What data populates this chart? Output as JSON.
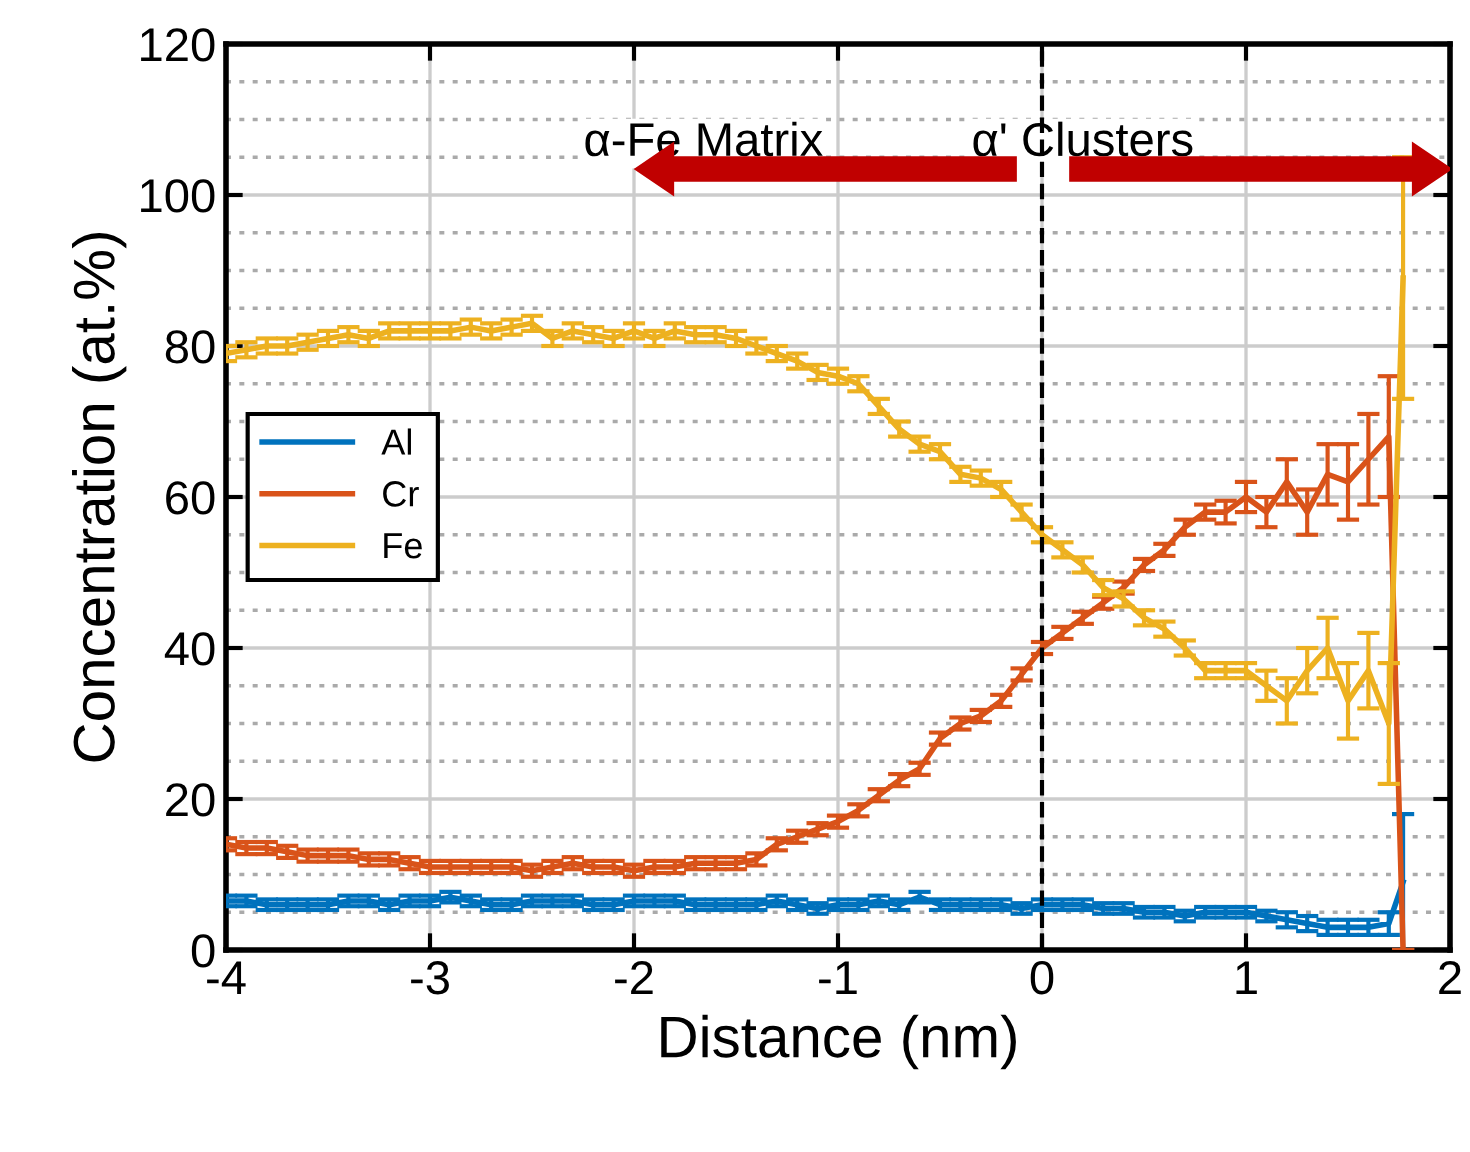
{
  "chart_data": {
    "type": "line",
    "xlabel": "Distance (nm)",
    "ylabel": "Concentration (at.%)",
    "x": [
      -4.0,
      -3.9,
      -3.8,
      -3.7,
      -3.6,
      -3.5,
      -3.4,
      -3.3,
      -3.2,
      -3.1,
      -3.0,
      -2.9,
      -2.8,
      -2.7,
      -2.6,
      -2.5,
      -2.4,
      -2.3,
      -2.2,
      -2.1,
      -2.0,
      -1.9,
      -1.8,
      -1.7,
      -1.6,
      -1.5,
      -1.4,
      -1.3,
      -1.2,
      -1.1,
      -1.0,
      -0.9,
      -0.8,
      -0.7,
      -0.6,
      -0.5,
      -0.4,
      -0.3,
      -0.2,
      -0.1,
      0.0,
      0.1,
      0.2,
      0.3,
      0.4,
      0.5,
      0.6,
      0.7,
      0.8,
      0.9,
      1.0,
      1.1,
      1.2,
      1.3,
      1.4,
      1.5,
      1.6,
      1.7,
      1.77
    ],
    "series": [
      {
        "name": "Al",
        "color": "#0072bd",
        "values": [
          6.5,
          6.5,
          6,
          6,
          6,
          6,
          6.5,
          6.5,
          6,
          6.5,
          6.5,
          7,
          6.5,
          6,
          6,
          6.5,
          6.5,
          6.5,
          6,
          6,
          6.5,
          6.5,
          6.5,
          6,
          6,
          6,
          6,
          6.5,
          6,
          5.5,
          6,
          6,
          6.5,
          6,
          7,
          6,
          6,
          6,
          6,
          5.5,
          6,
          6,
          6,
          5.5,
          5.5,
          5,
          5,
          4.5,
          5,
          5,
          5,
          4.5,
          4,
          3.5,
          3,
          3,
          3,
          3.5,
          9
        ],
        "errors": [
          0.7,
          0.7,
          0.7,
          0.7,
          0.7,
          0.7,
          0.7,
          0.7,
          0.7,
          0.7,
          0.7,
          0.7,
          0.7,
          0.7,
          0.7,
          0.7,
          0.7,
          0.7,
          0.7,
          0.7,
          0.7,
          0.7,
          0.7,
          0.7,
          0.7,
          0.7,
          0.7,
          0.7,
          0.7,
          0.7,
          0.7,
          0.7,
          0.7,
          0.7,
          0.7,
          0.7,
          0.7,
          0.7,
          0.7,
          0.7,
          0.7,
          0.7,
          0.7,
          0.7,
          0.7,
          0.7,
          0.7,
          0.7,
          0.7,
          0.7,
          0.7,
          0.7,
          1,
          1,
          1,
          1,
          1,
          1.5,
          9
        ]
      },
      {
        "name": "Cr",
        "color": "#d95319",
        "values": [
          14,
          13.5,
          13.5,
          13,
          12.5,
          12.5,
          12.5,
          12,
          12,
          11.5,
          11,
          11,
          11,
          11,
          11,
          10.5,
          11,
          11.5,
          11,
          11,
          10.5,
          11,
          11,
          11.5,
          11.5,
          11.5,
          12,
          14,
          15,
          16,
          17,
          18.5,
          20.5,
          22.5,
          24,
          28,
          30,
          31,
          33,
          36.5,
          40,
          42,
          44,
          46,
          48,
          51,
          53,
          56,
          58,
          58,
          60,
          58,
          62,
          58,
          63,
          62,
          65,
          68,
          0
        ],
        "errors": [
          0.8,
          0.8,
          0.8,
          0.8,
          0.8,
          0.8,
          0.8,
          0.8,
          0.8,
          0.8,
          0.8,
          0.8,
          0.8,
          0.8,
          0.8,
          0.8,
          0.8,
          0.8,
          0.8,
          0.8,
          0.8,
          0.8,
          0.8,
          0.8,
          0.8,
          0.8,
          0.8,
          0.8,
          0.8,
          0.8,
          0.8,
          0.8,
          0.8,
          0.8,
          0.8,
          0.8,
          0.8,
          0.8,
          0.8,
          0.8,
          0.8,
          0.8,
          0.8,
          0.8,
          0.8,
          0.8,
          0.8,
          1,
          1,
          1.5,
          2,
          2,
          3,
          3,
          4,
          5,
          6,
          8,
          0
        ]
      },
      {
        "name": "Fe",
        "color": "#edb120",
        "values": [
          79,
          79.5,
          80,
          80,
          80.5,
          81,
          81.5,
          81,
          82,
          82,
          82,
          82,
          82.5,
          82,
          82.5,
          83,
          81,
          82,
          81.5,
          81,
          82,
          81,
          82,
          81.5,
          81.5,
          81,
          80,
          79,
          78,
          76.5,
          76,
          75,
          72,
          69,
          67,
          66,
          63,
          62.5,
          61,
          58,
          55,
          53,
          51,
          48,
          46.5,
          44,
          42.5,
          40,
          37,
          37,
          37,
          35,
          33,
          37,
          40,
          33,
          37,
          30,
          89
        ],
        "errors": [
          1,
          1,
          1,
          1,
          1,
          1,
          1,
          1,
          1,
          1,
          1,
          1,
          1,
          1,
          1,
          1,
          1,
          1,
          1,
          1,
          1,
          1,
          1,
          1,
          1,
          1,
          1,
          1,
          1,
          1,
          1,
          1,
          1,
          1,
          1,
          1,
          1,
          1,
          1,
          1,
          1,
          1,
          1,
          1,
          1,
          1,
          1,
          1,
          1,
          1,
          1,
          2,
          3,
          3,
          4,
          5,
          5,
          8,
          16
        ]
      }
    ],
    "xlim": [
      -4,
      2
    ],
    "xticks": [
      -4,
      -3,
      -2,
      -1,
      0,
      1,
      2
    ],
    "ylim": [
      0,
      120
    ],
    "yticks": [
      0,
      20,
      40,
      60,
      80,
      100,
      120
    ],
    "grid": true,
    "legend": "left",
    "marker": "none",
    "line_style": "solid",
    "ref_lines": [
      {
        "axis": "x",
        "value": 0,
        "color": "#000000",
        "line_style": "dashed"
      }
    ],
    "annotations": [
      "α-Fe Matrix",
      "α' Clusters"
    ]
  }
}
